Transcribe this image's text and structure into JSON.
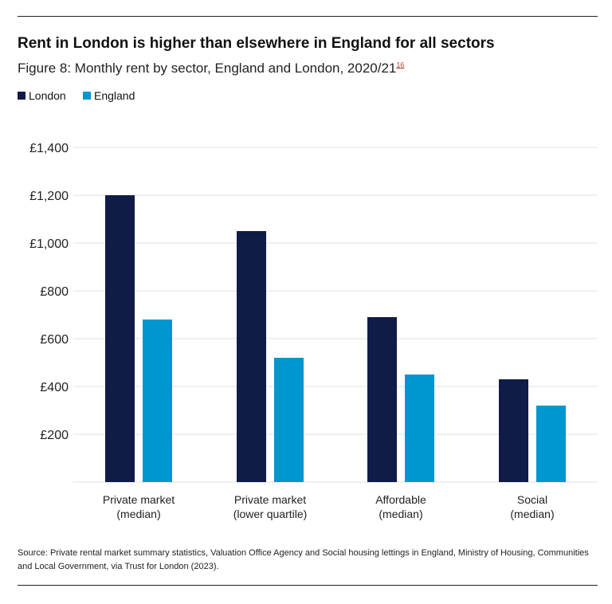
{
  "title": "Rent in London is higher than elsewhere in England for all sectors",
  "subtitle": "Figure 8: Monthly rent by sector, England and London, 2020/21",
  "footnote_ref": "16",
  "source": "Source: Private rental market summary statistics, Valuation Office Agency and Social housing lettings in England, Ministry of Housing, Communities and Local Government, via Trust for London (2023).",
  "chart_data": {
    "type": "bar",
    "categories": [
      [
        "Private market",
        "(median)"
      ],
      [
        "Private market",
        "(lower quartile)"
      ],
      [
        "Affordable",
        "(median)"
      ],
      [
        "Social",
        "(median)"
      ]
    ],
    "series": [
      {
        "name": "London",
        "color": "#101b47",
        "values": [
          1200,
          1050,
          690,
          430
        ]
      },
      {
        "name": "England",
        "color": "#0096d0",
        "values": [
          680,
          520,
          450,
          320
        ]
      }
    ],
    "yticks": [
      "£200",
      "£400",
      "£600",
      "£800",
      "£1,000",
      "£1,200",
      "£1,400"
    ],
    "ytick_values": [
      200,
      400,
      600,
      800,
      1000,
      1200,
      1400
    ],
    "ylim": [
      0,
      1400
    ],
    "grid": true,
    "legend": "top-left"
  }
}
